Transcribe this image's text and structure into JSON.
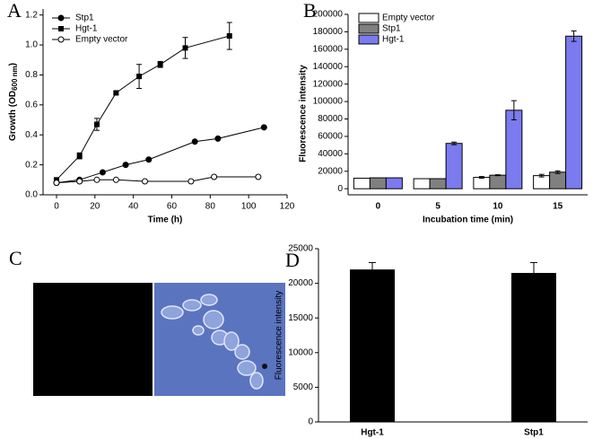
{
  "chart_data": [
    {
      "type": "line",
      "panel": "A",
      "xlabel": "Time (h)",
      "ylabel": [
        "Growth (OD",
        "600 nm",
        ")"
      ],
      "xlim": [
        -7,
        120
      ],
      "xticks": [
        0,
        20,
        40,
        60,
        80,
        100,
        120
      ],
      "ylim": [
        0,
        1.24
      ],
      "yticks": [
        {
          "value": 0,
          "label": "0.0"
        },
        {
          "value": 0.2,
          "label": "0.2"
        },
        {
          "value": 0.4,
          "label": "0.4"
        },
        {
          "value": 0.6,
          "label": "0.6"
        },
        {
          "value": 0.8,
          "label": "0.8"
        },
        {
          "value": 1,
          "label": "1.0"
        },
        {
          "value": 1.2,
          "label": "1.2"
        }
      ],
      "legend": "top-left",
      "series": [
        {
          "name": "Stp1",
          "color": "#000000",
          "marker": "filled-circle",
          "x": [
            0,
            12,
            24,
            36,
            48,
            72,
            84,
            108
          ],
          "values": [
            0.08,
            0.1,
            0.15,
            0.2,
            0.235,
            0.355,
            0.375,
            0.45
          ]
        },
        {
          "name": "Hgt-1",
          "color": "#000000",
          "marker": "filled-square",
          "x": [
            0,
            12,
            21,
            31,
            43,
            54,
            67,
            90
          ],
          "values": [
            0.1,
            0.26,
            0.47,
            0.68,
            0.79,
            0.87,
            0.98,
            1.06
          ],
          "errors": [
            0,
            0.02,
            0.04,
            0.01,
            0.08,
            0.02,
            0.07,
            0.09
          ]
        },
        {
          "name": "Empty vector",
          "color": "#000000",
          "marker": "open-circle",
          "x": [
            0,
            12,
            21,
            31,
            46,
            70,
            82,
            105
          ],
          "values": [
            0.08,
            0.09,
            0.1,
            0.1,
            0.09,
            0.09,
            0.12,
            0.12
          ]
        }
      ]
    },
    {
      "type": "grouped-bar",
      "panel": "B",
      "xlabel": "Incubation time (min)",
      "ylabel": "Fluorescence intensity",
      "categories": [
        "0",
        "5",
        "10",
        "15"
      ],
      "ylim": [
        -7000,
        200000
      ],
      "yticks": [
        0,
        20000,
        40000,
        60000,
        80000,
        100000,
        120000,
        140000,
        160000,
        180000,
        200000
      ],
      "legend": "top-left",
      "series": [
        {
          "name": "Empty vector",
          "color": "#ffffff",
          "values": [
            12000,
            11500,
            13000,
            15000
          ],
          "errors": [
            0,
            0,
            1000,
            1500
          ]
        },
        {
          "name": "Stp1",
          "color": "#808080",
          "values": [
            12500,
            11500,
            15500,
            19000
          ],
          "errors": [
            0,
            0,
            500,
            1500
          ]
        },
        {
          "name": "Hgt-1",
          "color": "#7b7bef",
          "values": [
            12500,
            52000,
            90000,
            175000
          ],
          "errors": [
            0,
            1500,
            11000,
            6000
          ]
        }
      ]
    },
    {
      "type": "bar",
      "panel": "D",
      "ylabel": "Fluorescence intensity",
      "categories": [
        "Hgt-1",
        "Stp1"
      ],
      "color": "#000000",
      "values": [
        22000,
        21500
      ],
      "errors": [
        1000,
        1500
      ],
      "ylim": [
        0,
        25000
      ],
      "yticks": [
        0,
        5000,
        10000,
        15000,
        20000,
        25000
      ]
    }
  ],
  "image_panel": {
    "panel": "C"
  }
}
